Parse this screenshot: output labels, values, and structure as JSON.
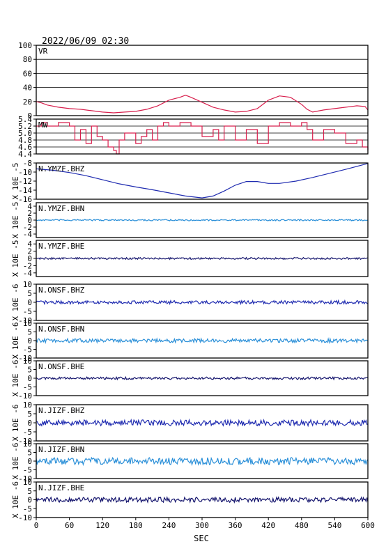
{
  "header": {
    "timestamp": "2022/06/09 02:30"
  },
  "chart_data": {
    "type": "line",
    "x_axis": {
      "label": "SEC",
      "range": [
        0,
        600
      ],
      "ticks": [
        0,
        60,
        120,
        180,
        240,
        300,
        360,
        420,
        480,
        540,
        600
      ]
    },
    "panels": [
      {
        "id": "vr",
        "label": "VR",
        "ylabel": "",
        "ylim": [
          0,
          100
        ],
        "yticks": [
          "0",
          "20",
          "40",
          "60",
          "80",
          "100"
        ],
        "grid": true,
        "color": "#d81e4c",
        "kind": "trace",
        "x": [
          0,
          10,
          20,
          40,
          60,
          80,
          100,
          120,
          140,
          160,
          180,
          200,
          220,
          240,
          260,
          270,
          280,
          300,
          320,
          340,
          360,
          380,
          400,
          420,
          440,
          460,
          480,
          490,
          500,
          520,
          540,
          560,
          580,
          595,
          600
        ],
        "y": [
          20,
          18,
          15,
          12,
          10,
          9,
          7,
          5,
          4,
          5,
          6,
          9,
          14,
          22,
          26,
          29,
          26,
          19,
          12,
          8,
          5,
          6,
          10,
          22,
          28,
          26,
          16,
          9,
          5,
          8,
          10,
          12,
          14,
          13,
          8
        ]
      },
      {
        "id": "mw",
        "label": "MW",
        "ylabel": "",
        "ylim": [
          4.4,
          5.4
        ],
        "yticks": [
          "4.4",
          "4.6",
          "4.8",
          "5.0",
          "5.2",
          "5.4"
        ],
        "grid": true,
        "color": "#d81e4c",
        "kind": "step",
        "x": [
          0,
          10,
          20,
          40,
          60,
          70,
          80,
          90,
          100,
          110,
          120,
          130,
          140,
          145,
          150,
          160,
          180,
          190,
          200,
          210,
          220,
          230,
          240,
          260,
          280,
          300,
          320,
          330,
          340,
          360,
          380,
          400,
          420,
          440,
          460,
          480,
          490,
          500,
          520,
          540,
          560,
          580,
          590,
          600
        ],
        "y": [
          5.2,
          5.3,
          5.2,
          5.3,
          5.2,
          4.8,
          5.1,
          4.7,
          5.2,
          4.9,
          4.8,
          4.6,
          4.5,
          4.4,
          4.8,
          5.0,
          4.7,
          4.9,
          5.1,
          4.8,
          5.2,
          5.3,
          5.2,
          5.3,
          5.2,
          4.9,
          5.1,
          4.8,
          5.2,
          4.8,
          5.1,
          4.7,
          5.2,
          5.3,
          5.2,
          5.3,
          5.1,
          4.8,
          5.1,
          5.0,
          4.7,
          4.8,
          4.6,
          4.5
        ]
      },
      {
        "id": "ymzf-bhz",
        "label": "N.YMZF.BHZ",
        "ylabel": "X 10E -5",
        "ylim": [
          -16,
          -8
        ],
        "yticks": [
          "-16",
          "-14",
          "-12",
          "-10",
          "-8"
        ],
        "grid": false,
        "color": "#1f2bb0",
        "kind": "trace",
        "x": [
          0,
          30,
          60,
          90,
          120,
          150,
          180,
          210,
          240,
          270,
          300,
          320,
          340,
          360,
          380,
          400,
          420,
          440,
          470,
          500,
          530,
          560,
          600
        ],
        "y": [
          -9.3,
          -9.6,
          -10.1,
          -10.8,
          -11.7,
          -12.6,
          -13.3,
          -13.9,
          -14.6,
          -15.3,
          -15.7,
          -15.3,
          -14.2,
          -12.9,
          -12.1,
          -12.1,
          -12.5,
          -12.5,
          -12.0,
          -11.2,
          -10.3,
          -9.4,
          -8.1
        ]
      },
      {
        "id": "ymzf-bhn",
        "label": "N.YMZF.BHN",
        "ylabel": "X 10E -5",
        "ylim": [
          -5,
          5
        ],
        "yticks": [
          "-4",
          "-2",
          "0",
          "2",
          "4"
        ],
        "grid": false,
        "color": "#2a8fd8",
        "kind": "noise",
        "amplitude": 0.2
      },
      {
        "id": "ymzf-bhe",
        "label": "N.YMZF.BHE",
        "ylabel": "X 10E -5",
        "ylim": [
          -5,
          5
        ],
        "yticks": [
          "-4",
          "-2",
          "0",
          "2",
          "4"
        ],
        "grid": false,
        "color": "#16166e",
        "kind": "noise",
        "amplitude": 0.25
      },
      {
        "id": "onsf-bhz",
        "label": "N.ONSF.BHZ",
        "ylabel": "X 10E -6",
        "ylim": [
          -10,
          10
        ],
        "yticks": [
          "-10",
          "-5",
          "0",
          "5",
          "10"
        ],
        "grid": false,
        "color": "#1f2bb0",
        "kind": "noise",
        "amplitude": 0.9
      },
      {
        "id": "onsf-bhn",
        "label": "N.ONSF.BHN",
        "ylabel": "X 10E -6",
        "ylim": [
          -10,
          10
        ],
        "yticks": [
          "-10",
          "-5",
          "0",
          "5",
          "10"
        ],
        "grid": false,
        "color": "#2a8fd8",
        "kind": "noise",
        "amplitude": 1.1
      },
      {
        "id": "onsf-bhe",
        "label": "N.ONSF.BHE",
        "ylabel": "X 10E -6",
        "ylim": [
          -10,
          10
        ],
        "yticks": [
          "-10",
          "-5",
          "0",
          "5",
          "10"
        ],
        "grid": false,
        "color": "#16166e",
        "kind": "noise",
        "amplitude": 0.7
      },
      {
        "id": "jizf-bhz",
        "label": "N.JIZF.BHZ",
        "ylabel": "X 10E -6",
        "ylim": [
          -10,
          10
        ],
        "yticks": [
          "-10",
          "-5",
          "0",
          "5",
          "10"
        ],
        "grid": false,
        "color": "#1f2bb0",
        "kind": "noise",
        "amplitude": 1.6
      },
      {
        "id": "jizf-bhn",
        "label": "N.JIZF.BHN",
        "ylabel": "X 10E -6",
        "ylim": [
          -10,
          10
        ],
        "yticks": [
          "-10",
          "-5",
          "0",
          "5",
          "10"
        ],
        "grid": false,
        "color": "#2a8fd8",
        "kind": "noise",
        "amplitude": 2.0
      },
      {
        "id": "jizf-bhe",
        "label": "N.JIZF.BHE",
        "ylabel": "X 10E -6",
        "ylim": [
          -10,
          10
        ],
        "yticks": [
          "-10",
          "-5",
          "0",
          "5",
          "10"
        ],
        "grid": false,
        "color": "#16166e",
        "kind": "noise",
        "amplitude": 1.4
      }
    ]
  }
}
